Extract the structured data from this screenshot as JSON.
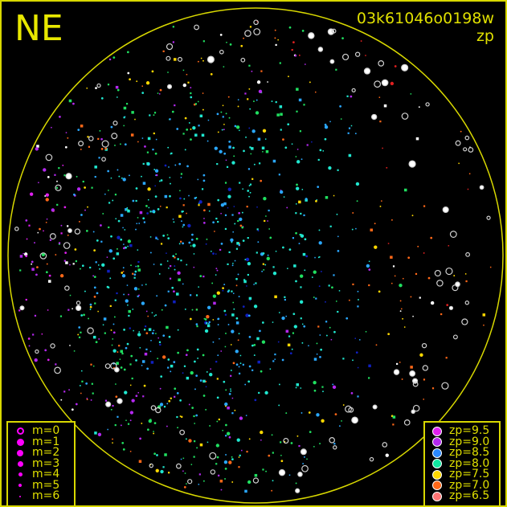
{
  "header": {
    "direction_label": "NE",
    "image_id": "03k61046o0198w",
    "color_key": "zp"
  },
  "chart_data": {
    "type": "scatter",
    "title": "03k61046o0198w",
    "color_variable": "zp",
    "size_variable": "m",
    "field": "all-sky circle",
    "legend_size": [
      {
        "label": "m=0",
        "m": 0
      },
      {
        "label": "m=1",
        "m": 1
      },
      {
        "label": "m=2",
        "m": 2
      },
      {
        "label": "m=3",
        "m": 3
      },
      {
        "label": "m=4",
        "m": 4
      },
      {
        "label": "m=5",
        "m": 5
      },
      {
        "label": "m=6",
        "m": 6
      }
    ],
    "legend_color": [
      {
        "label": "zp=9.5",
        "zp": 9.5,
        "color": "#e020f0"
      },
      {
        "label": "zp=9.0",
        "zp": 9.0,
        "color": "#b428f0"
      },
      {
        "label": "zp=8.5",
        "zp": 8.5,
        "color": "#2a88ff"
      },
      {
        "label": "zp=8.0",
        "zp": 8.0,
        "color": "#10e8a0"
      },
      {
        "label": "zp=7.5",
        "zp": 7.5,
        "color": "#ffd800"
      },
      {
        "label": "zp=7.0",
        "zp": 7.0,
        "color": "#ff6818"
      },
      {
        "label": "zp=6.5",
        "zp": 6.5,
        "color": "#ff7474"
      }
    ],
    "legend_placement": [
      "bottom-left",
      "bottom-right"
    ]
  },
  "colors": {
    "frame": "#d8d800",
    "legend_symbol": "#ff00ff",
    "background": "#000000"
  }
}
